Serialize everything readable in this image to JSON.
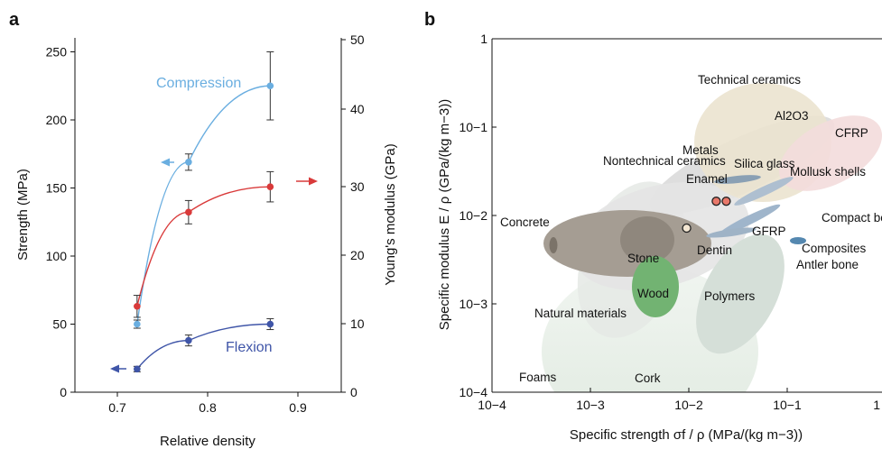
{
  "chart_data": [
    {
      "panel_label": "a",
      "type": "line",
      "xlabel": "Relative density",
      "ylabel_left": "Strength (MPa)",
      "ylabel_right": "Young's modulus (GPa)",
      "xlim": [
        0.65,
        0.95
      ],
      "ylim_left": [
        0,
        260
      ],
      "ylim_right": [
        0,
        50
      ],
      "x_ticks": [
        "0.7",
        "0.8",
        "0.9"
      ],
      "y_left_ticks": [
        "0",
        "50",
        "100",
        "150",
        "200",
        "250"
      ],
      "y_right_ticks": [
        "0",
        "10",
        "20",
        "30",
        "40",
        "50"
      ],
      "grid": false,
      "series": [
        {
          "name": "Compression",
          "axis": "left",
          "color": "#6aaee0",
          "x": [
            0.72,
            0.778,
            0.87
          ],
          "y": [
            50,
            169,
            225
          ],
          "err": [
            3,
            6,
            25
          ]
        },
        {
          "name": "",
          "axis": "right",
          "color": "#d93a3a",
          "x": [
            0.72,
            0.778,
            0.87
          ],
          "y": [
            12.5,
            26.2,
            29.9
          ],
          "err": [
            1.6,
            1.7,
            2.2
          ]
        },
        {
          "name": "Flexion",
          "axis": "left",
          "color": "#3f55a8",
          "x": [
            0.72,
            0.778,
            0.87
          ],
          "y": [
            17,
            38,
            50
          ],
          "err": [
            2,
            4,
            4
          ]
        }
      ]
    },
    {
      "panel_label": "b",
      "type": "scatter",
      "xlabel": "Specific strength σf / ρ (MPa/(kg m−3))",
      "ylabel": "Specific modulus E / ρ (GPa/(kg m−3))",
      "xscale": "log",
      "yscale": "log",
      "xlim": [
        0.0001,
        1
      ],
      "ylim": [
        0.0001,
        1
      ],
      "x_ticks": [
        "10−4",
        "10−3",
        "10−2",
        "10−1",
        "1"
      ],
      "y_ticks": [
        "10−4",
        "10−3",
        "10−2",
        "10−1",
        "1"
      ],
      "grid": false,
      "regions": [
        "Technical ceramics",
        "Al2O3",
        "CFRP",
        "Metals",
        "Silica glass",
        "Mollusk shells",
        "Nontechnical ceramics",
        "Enamel",
        "Compact bone",
        "Concrete",
        "GFRP",
        "Dentin",
        "Composites",
        "Stone",
        "Antler bone",
        "Wood",
        "Polymers",
        "Natural materials",
        "Foams",
        "Cork"
      ],
      "points": [
        {
          "x": 0.0095,
          "y": 0.0072,
          "fill": "#f3e6d2"
        },
        {
          "x": 0.019,
          "y": 0.0145,
          "fill": "#e8786a"
        },
        {
          "x": 0.024,
          "y": 0.0145,
          "fill": "#e8786a"
        }
      ]
    }
  ]
}
